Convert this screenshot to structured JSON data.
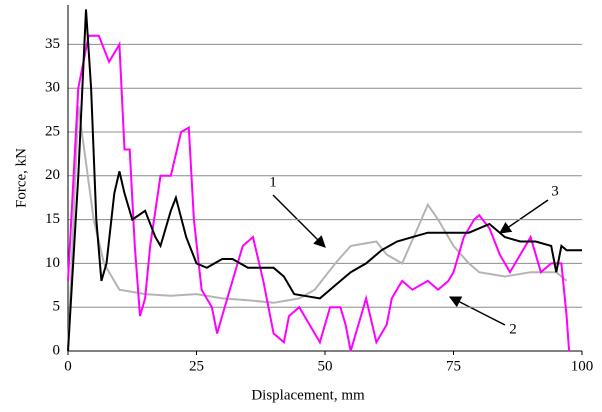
{
  "chart_data": {
    "type": "line",
    "xlabel": "Displacement, mm",
    "ylabel": "Force, kN",
    "xlim": [
      0,
      100
    ],
    "ylim": [
      0,
      39.5
    ],
    "xticks": [
      0,
      25,
      50,
      75,
      100
    ],
    "yticks": [
      0,
      5,
      10,
      15,
      20,
      25,
      30,
      35
    ],
    "grid": true,
    "series": [
      {
        "name": "1",
        "color": "#b4b4b4",
        "x": [
          0,
          2,
          5,
          7,
          10,
          15,
          20,
          25,
          30,
          35,
          40,
          45,
          48,
          52,
          55,
          60,
          62,
          65,
          68,
          70,
          72,
          75,
          78,
          80,
          85,
          90,
          95,
          97
        ],
        "values": [
          0,
          28,
          15,
          10,
          7,
          6.5,
          6.3,
          6.5,
          6,
          5.8,
          5.5,
          6,
          7,
          10,
          12,
          12.5,
          11,
          10,
          14,
          16.7,
          15,
          12,
          10,
          9,
          8.5,
          9,
          9,
          8
        ]
      },
      {
        "name": "2",
        "color": "#ff00ff",
        "x": [
          0,
          2,
          4,
          6,
          8,
          10,
          11,
          12,
          13,
          14,
          15,
          16,
          18,
          20,
          22,
          23.5,
          24.5,
          26,
          28,
          29,
          31,
          33,
          34,
          36,
          38,
          40,
          42,
          43,
          45,
          47,
          49,
          51,
          53,
          54,
          55,
          56,
          57,
          58,
          60,
          62,
          63,
          65,
          67,
          70,
          72,
          74,
          75,
          77,
          79,
          80,
          82,
          84,
          86,
          88,
          90,
          92,
          94,
          96,
          97,
          97.5
        ],
        "values": [
          8,
          30,
          36,
          36,
          33,
          35,
          23,
          23,
          12,
          4,
          6,
          12,
          20,
          20,
          25,
          25.5,
          15,
          7,
          5,
          2,
          6,
          10,
          12,
          13,
          8,
          2,
          1,
          4,
          5,
          3,
          1,
          5,
          5,
          3,
          0,
          2,
          4,
          6,
          1,
          3,
          6,
          8,
          7,
          8,
          7,
          8,
          9,
          13,
          15,
          15.5,
          14,
          11,
          9,
          11,
          13,
          9,
          10,
          10,
          4,
          0
        ]
      },
      {
        "name": "3",
        "color": "#000000",
        "x": [
          0,
          2,
          3.5,
          4.5,
          5.5,
          6.5,
          7.5,
          9,
          10,
          11,
          12.5,
          15,
          17,
          18,
          20,
          21,
          23,
          25,
          27,
          30,
          32,
          35,
          38,
          40,
          42,
          44,
          47,
          49,
          52,
          55,
          58,
          61,
          64,
          67,
          70,
          74,
          78,
          82,
          85,
          88,
          91,
          94,
          95,
          96,
          97,
          100
        ],
        "values": [
          0,
          20,
          39,
          30,
          15,
          8,
          10,
          18,
          20.5,
          18,
          15,
          16,
          13,
          12,
          16,
          17.5,
          13,
          10,
          9.5,
          10.5,
          10.5,
          9.5,
          9.5,
          9.5,
          8.5,
          6.5,
          6.2,
          6,
          7.5,
          9,
          10,
          11.5,
          12.5,
          13,
          13.5,
          13.5,
          13.5,
          14.5,
          13,
          12.5,
          12.5,
          12,
          9,
          12,
          11.5,
          11.5
        ]
      }
    ]
  }
}
